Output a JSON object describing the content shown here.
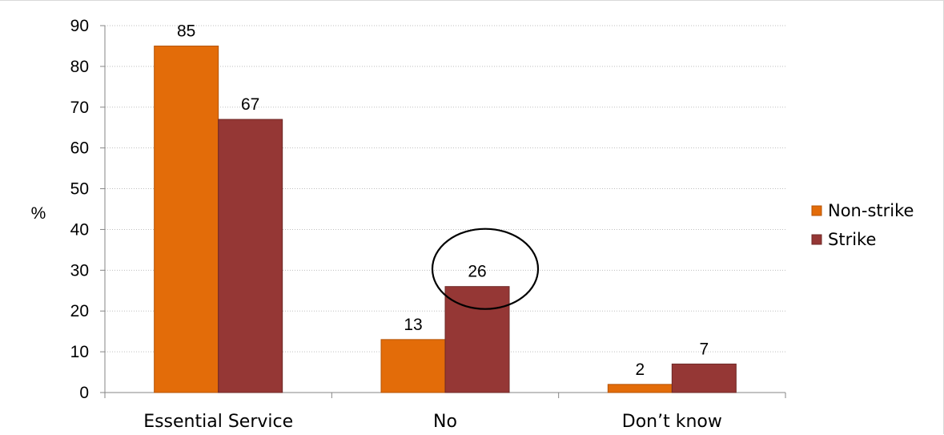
{
  "chart_data": {
    "type": "bar",
    "title": "",
    "xlabel": "",
    "ylabel": "%",
    "ylim": [
      0,
      90
    ],
    "yticks": [
      0,
      10,
      20,
      30,
      40,
      50,
      60,
      70,
      80,
      90
    ],
    "grid": "horizontal-dotted",
    "legend_position": "right",
    "categories": [
      "Essential Service",
      "No",
      "Don’t know"
    ],
    "series": [
      {
        "name": "Non-strike",
        "color": "#e36c09",
        "values": [
          85,
          13,
          2
        ]
      },
      {
        "name": "Strike",
        "color": "#953735",
        "values": [
          67,
          26,
          7
        ]
      }
    ],
    "annotations": [
      {
        "type": "circle",
        "category": "No",
        "series": "Strike",
        "value": 26
      }
    ]
  }
}
